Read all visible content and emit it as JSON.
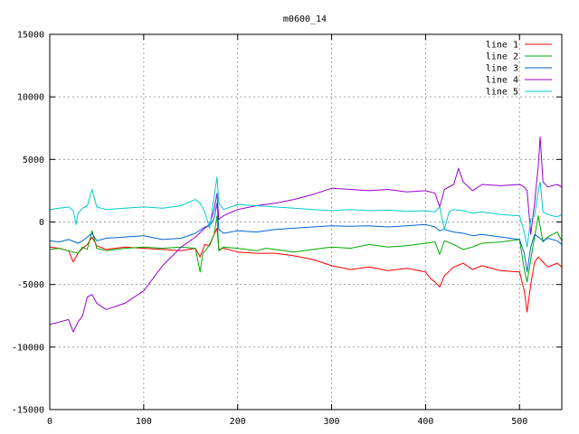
{
  "chart_data": {
    "type": "line",
    "title": "m0600_14",
    "xlabel": "",
    "ylabel": "",
    "xlim": [
      0,
      545
    ],
    "ylim": [
      -15000,
      15000
    ],
    "xticks": [
      0,
      100,
      200,
      300,
      400,
      500
    ],
    "yticks": [
      -15000,
      -10000,
      -5000,
      0,
      5000,
      10000,
      15000
    ],
    "grid": true,
    "legend_position": "top-right",
    "series": [
      {
        "name": "line 1",
        "color": "#ff0000",
        "x": [
          0,
          10,
          20,
          25,
          30,
          35,
          40,
          45,
          50,
          60,
          80,
          100,
          120,
          140,
          155,
          160,
          165,
          170,
          175,
          178,
          180,
          185,
          190,
          200,
          220,
          240,
          260,
          280,
          300,
          320,
          340,
          360,
          380,
          400,
          405,
          410,
          415,
          420,
          430,
          440,
          450,
          460,
          480,
          500,
          505,
          508,
          512,
          516,
          520,
          525,
          530,
          540,
          545
        ],
        "y": [
          -2000,
          -2100,
          -2300,
          -3200,
          -2500,
          -2100,
          -1800,
          -1200,
          -1900,
          -2200,
          -2000,
          -2100,
          -2200,
          -2300,
          -2100,
          -2800,
          -1800,
          -1900,
          -1000,
          -500,
          -2200,
          -2100,
          -2200,
          -2400,
          -2500,
          -2500,
          -2700,
          -3000,
          -3500,
          -3800,
          -3600,
          -3900,
          -3700,
          -4000,
          -4500,
          -4800,
          -5200,
          -4300,
          -3600,
          -3300,
          -3800,
          -3500,
          -3900,
          -4000,
          -5500,
          -7200,
          -5000,
          -3200,
          -2800,
          -3200,
          -3600,
          -3300,
          -3600
        ]
      },
      {
        "name": "line 2",
        "color": "#00aa00",
        "x": [
          0,
          10,
          20,
          30,
          35,
          40,
          45,
          50,
          60,
          80,
          100,
          120,
          140,
          155,
          160,
          163,
          166,
          170,
          175,
          178,
          180,
          185,
          200,
          220,
          230,
          240,
          260,
          280,
          300,
          320,
          340,
          360,
          380,
          400,
          410,
          415,
          420,
          430,
          440,
          450,
          460,
          480,
          500,
          505,
          508,
          512,
          516,
          520,
          525,
          530,
          540,
          545
        ],
        "y": [
          -2200,
          -2100,
          -2300,
          -2500,
          -2000,
          -2200,
          -700,
          -2100,
          -2300,
          -2100,
          -2000,
          -2100,
          -2000,
          -2100,
          -4000,
          -2500,
          -2300,
          -1800,
          -1000,
          500,
          -2300,
          -2000,
          -2100,
          -2300,
          -2100,
          -2200,
          -2400,
          -2200,
          -2000,
          -2100,
          -1800,
          -2000,
          -1900,
          -1700,
          -1600,
          -2600,
          -1500,
          -1800,
          -2200,
          -2000,
          -1700,
          -1600,
          -1400,
          -3800,
          -4800,
          -3000,
          -1200,
          500,
          -1600,
          -1200,
          -800,
          -1500
        ]
      },
      {
        "name": "line 3",
        "color": "#0066cc",
        "x": [
          0,
          10,
          20,
          30,
          35,
          40,
          45,
          50,
          60,
          80,
          100,
          120,
          140,
          155,
          165,
          170,
          175,
          178,
          180,
          185,
          200,
          220,
          240,
          260,
          280,
          300,
          320,
          340,
          360,
          380,
          400,
          410,
          415,
          420,
          430,
          440,
          450,
          460,
          480,
          500,
          505,
          508,
          512,
          516,
          520,
          525,
          530,
          540,
          545
        ],
        "y": [
          -1500,
          -1600,
          -1400,
          -1700,
          -1500,
          -1200,
          -900,
          -1500,
          -1300,
          -1200,
          -1100,
          -1400,
          -1300,
          -900,
          -400,
          -300,
          300,
          1500,
          -600,
          -900,
          -700,
          -800,
          -600,
          -500,
          -400,
          -300,
          -350,
          -300,
          -400,
          -300,
          -200,
          -400,
          -700,
          -600,
          -800,
          -900,
          -1100,
          -1000,
          -1200,
          -1400,
          -2500,
          -4000,
          -2000,
          -1000,
          -1200,
          -1500,
          -1300,
          -1500,
          -1800
        ]
      },
      {
        "name": "line 4",
        "color": "#9900cc",
        "x": [
          0,
          10,
          20,
          25,
          30,
          35,
          40,
          45,
          50,
          60,
          80,
          100,
          120,
          140,
          155,
          165,
          170,
          175,
          178,
          180,
          185,
          200,
          220,
          240,
          260,
          280,
          300,
          320,
          340,
          360,
          380,
          400,
          410,
          415,
          420,
          430,
          435,
          440,
          450,
          460,
          480,
          500,
          505,
          508,
          512,
          516,
          520,
          522,
          525,
          530,
          540,
          545
        ],
        "y": [
          -8200,
          -8000,
          -7800,
          -8800,
          -8000,
          -7500,
          -6000,
          -5800,
          -6500,
          -7000,
          -6500,
          -5500,
          -3500,
          -2000,
          -1200,
          -500,
          -200,
          1000,
          2300,
          200,
          500,
          1000,
          1300,
          1500,
          1800,
          2200,
          2700,
          2600,
          2500,
          2600,
          2400,
          2500,
          2300,
          1200,
          2600,
          3000,
          4300,
          3200,
          2500,
          3000,
          2900,
          3000,
          2800,
          2500,
          -1000,
          1500,
          4500,
          6800,
          3200,
          2800,
          3000,
          2800
        ]
      },
      {
        "name": "line 5",
        "color": "#00cccc",
        "x": [
          0,
          10,
          20,
          25,
          28,
          30,
          35,
          40,
          45,
          50,
          60,
          80,
          100,
          120,
          140,
          155,
          160,
          165,
          170,
          175,
          178,
          180,
          185,
          200,
          220,
          240,
          260,
          280,
          300,
          320,
          340,
          360,
          380,
          400,
          410,
          415,
          420,
          425,
          430,
          440,
          450,
          460,
          480,
          500,
          505,
          508,
          512,
          516,
          520,
          522,
          525,
          530,
          540,
          545
        ],
        "y": [
          1000,
          1100,
          1200,
          900,
          -200,
          700,
          1100,
          1300,
          2600,
          1200,
          1000,
          1100,
          1200,
          1100,
          1300,
          1800,
          1500,
          800,
          -500,
          2000,
          3600,
          1500,
          1000,
          1400,
          1300,
          1200,
          1100,
          1000,
          900,
          1000,
          900,
          950,
          850,
          900,
          800,
          1200,
          -600,
          800,
          1000,
          900,
          700,
          800,
          600,
          500,
          -800,
          -2000,
          200,
          500,
          2500,
          3200,
          800,
          600,
          400,
          600
        ]
      }
    ]
  }
}
